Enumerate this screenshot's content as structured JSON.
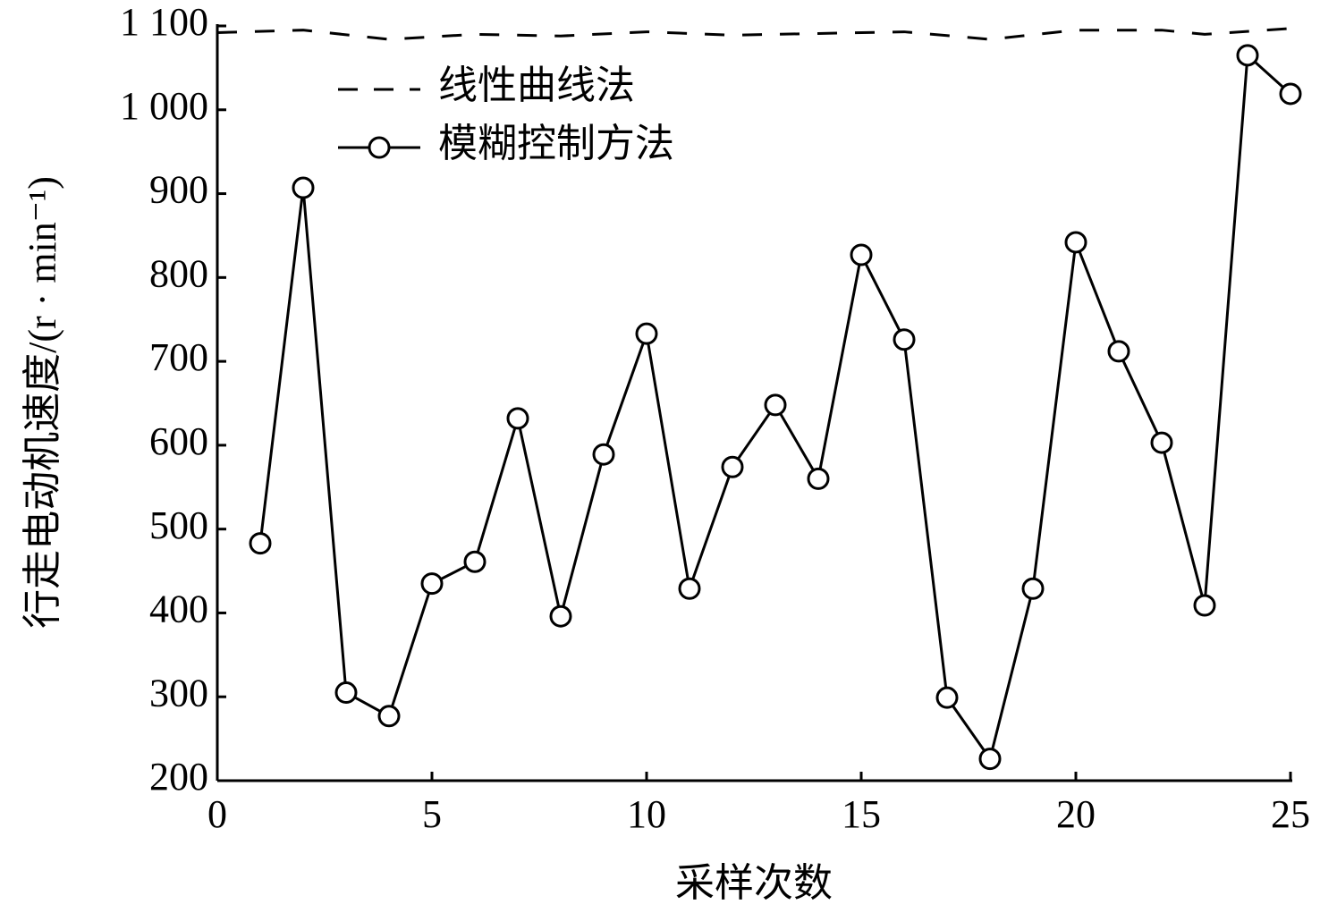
{
  "chart_data": {
    "type": "line",
    "xlabel": "采样次数",
    "ylabel": "行走电动机速度/(r · min⁻¹)",
    "xlim": [
      0,
      25
    ],
    "xticks": [
      0,
      5,
      10,
      15,
      20,
      25
    ],
    "ylim": [
      200,
      1100
    ],
    "yticks": [
      200,
      300,
      400,
      500,
      600,
      700,
      800,
      900,
      {
        "value": 1000,
        "label": "1 000"
      },
      {
        "value": 1100,
        "label": "1 100"
      }
    ],
    "legend": "upper left",
    "series": [
      {
        "name": "线性曲线法",
        "color": "#000000",
        "style": "dashed",
        "x": [
          0,
          2,
          4,
          6,
          8,
          10,
          12,
          14,
          16,
          18,
          20,
          22,
          23,
          25
        ],
        "values": [
          1092,
          1095,
          1084,
          1090,
          1088,
          1093,
          1089,
          1091,
          1093,
          1084,
          1095,
          1095,
          1090,
          1097
        ]
      },
      {
        "name": "模糊控制方法",
        "color": "#000000",
        "style": "solid",
        "marker": "circle",
        "x": [
          1,
          2,
          3,
          4,
          5,
          6,
          7,
          8,
          9,
          10,
          11,
          12,
          13,
          14,
          15,
          16,
          17,
          18,
          19,
          20,
          21,
          22,
          23,
          24,
          25
        ],
        "values": [
          483,
          907,
          305,
          277,
          435,
          461,
          632,
          396,
          589,
          733,
          429,
          574,
          648,
          560,
          827,
          726,
          299,
          226,
          429,
          842,
          712,
          603,
          409,
          1065,
          1019
        ]
      }
    ]
  }
}
